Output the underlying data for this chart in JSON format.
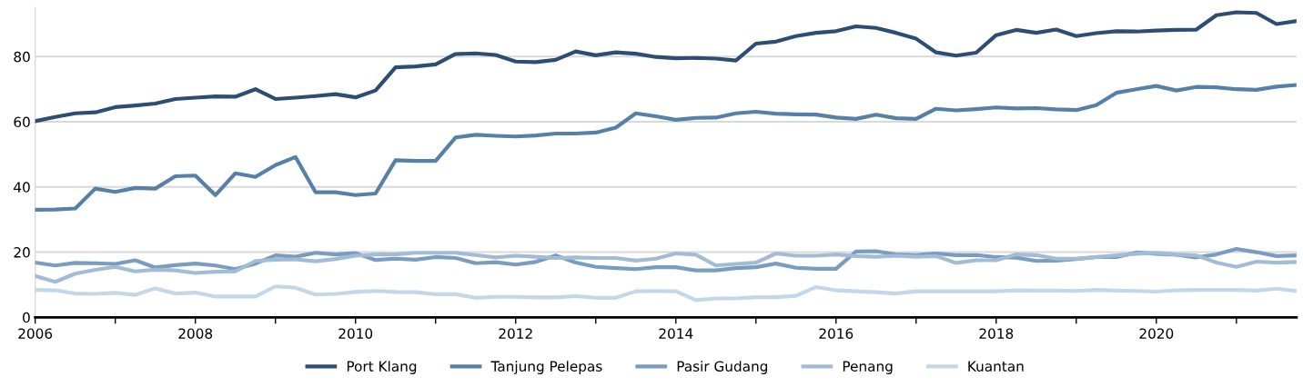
{
  "chart_data": {
    "type": "line",
    "x": [
      2006,
      2006.25,
      2006.5,
      2006.75,
      2007,
      2007.25,
      2007.5,
      2007.75,
      2008,
      2008.25,
      2008.5,
      2008.75,
      2009,
      2009.25,
      2009.5,
      2009.75,
      2010,
      2010.25,
      2010.5,
      2010.75,
      2011,
      2011.25,
      2011.5,
      2011.75,
      2012,
      2012.25,
      2012.5,
      2012.75,
      2013,
      2013.25,
      2013.5,
      2013.75,
      2014,
      2014.25,
      2014.5,
      2014.75,
      2015,
      2015.25,
      2015.5,
      2015.75,
      2016,
      2016.25,
      2016.5,
      2016.75,
      2017,
      2017.25,
      2017.5,
      2017.75,
      2018,
      2018.25,
      2018.5,
      2018.75,
      2019,
      2019.25,
      2019.5,
      2019.75,
      2020,
      2020.25,
      2020.5,
      2020.75,
      2021,
      2021.25,
      2021.5,
      2021.75
    ],
    "series": [
      {
        "name": "Port Klang",
        "color": "#2e4d74",
        "values": [
          60.2,
          61.5,
          62.6,
          62.9,
          64.5,
          65,
          65.6,
          67,
          67.4,
          67.8,
          67.7,
          70,
          67,
          67.4,
          67.9,
          68.5,
          67.5,
          69.6,
          76.7,
          77,
          77.6,
          80.8,
          81,
          80.5,
          78.5,
          78.3,
          79,
          81.6,
          80.4,
          81.3,
          80.9,
          79.9,
          79.5,
          79.6,
          79.4,
          78.8,
          84,
          84.6,
          86.3,
          87.3,
          87.8,
          89.3,
          88.8,
          87.3,
          85.5,
          81.3,
          80.3,
          81.2,
          86.6,
          88.2,
          87.3,
          88.3,
          86.3,
          87.2,
          87.8,
          87.7,
          88,
          88.2,
          88.3,
          92.7,
          93.6,
          93.4,
          90,
          90.9
        ]
      },
      {
        "name": "Tanjung Pelepas",
        "color": "#5580a8",
        "values": [
          33,
          33.1,
          33.4,
          39.5,
          38.5,
          39.7,
          39.5,
          43.3,
          43.5,
          37.5,
          44.2,
          43.1,
          46.7,
          49.2,
          38.4,
          38.4,
          37.5,
          38,
          48.2,
          48,
          48,
          55.2,
          56,
          55.7,
          55.5,
          55.8,
          56.4,
          56.4,
          56.7,
          58.2,
          62.6,
          61.7,
          60.6,
          61.2,
          61.3,
          62.6,
          63.1,
          62.5,
          62.3,
          62.2,
          61.3,
          60.9,
          62.2,
          61.1,
          60.9,
          64,
          63.5,
          63.9,
          64.4,
          64.1,
          64.2,
          63.8,
          63.6,
          65.1,
          68.9,
          70,
          71,
          69.6,
          70.7,
          70.6,
          70,
          69.8,
          70.8,
          71.3
        ]
      },
      {
        "name": "Pasir Gudang",
        "color": "#7a9cc0",
        "values": [
          16.8,
          15.9,
          16.7,
          16.6,
          16.4,
          17.5,
          15.3,
          16,
          16.5,
          15.9,
          14.8,
          16.5,
          19,
          18.6,
          19.8,
          19.3,
          19.7,
          17.6,
          18,
          17.7,
          18.5,
          18.2,
          16.6,
          16.9,
          16.2,
          17,
          19,
          16.8,
          15.5,
          15.1,
          14.8,
          15.4,
          15.4,
          14.4,
          14.4,
          15.1,
          15.4,
          16.5,
          15.2,
          14.9,
          14.9,
          20.2,
          20.3,
          19.3,
          19.1,
          19.6,
          19.1,
          19.1,
          18.5,
          18.3,
          17.3,
          17.4,
          17.9,
          18.5,
          18.5,
          19.9,
          19.5,
          19.2,
          18.4,
          19.3,
          21,
          20,
          18.8,
          19
        ]
      },
      {
        "name": "Penang",
        "color": "#a3bcd6",
        "values": [
          12.7,
          10.9,
          13.4,
          14.6,
          15.5,
          14.1,
          14.6,
          14.4,
          13.6,
          14,
          14.1,
          17.3,
          17.7,
          17.8,
          17.2,
          17.9,
          18.9,
          19.3,
          19.3,
          19.8,
          19.8,
          19.8,
          19.1,
          18.4,
          18.9,
          18.6,
          18.2,
          18.4,
          18.2,
          18.2,
          17.4,
          18,
          19.6,
          19.2,
          15.9,
          16.4,
          16.8,
          19.6,
          18.9,
          18.9,
          19.3,
          18.8,
          18.6,
          18.9,
          18.6,
          18.8,
          16.7,
          17.5,
          17.5,
          19.3,
          19.1,
          18,
          18,
          18.5,
          19,
          19.5,
          19.8,
          19.3,
          19,
          16.8,
          15.5,
          17.1,
          16.8,
          17
        ]
      },
      {
        "name": "Kuantan",
        "color": "#c3d7ea",
        "values": [
          8.4,
          8.3,
          7.3,
          7.2,
          7.5,
          6.9,
          8.9,
          7.3,
          7.6,
          6.4,
          6.4,
          6.4,
          9.5,
          9.1,
          7,
          7.2,
          7.8,
          8.1,
          7.8,
          7.7,
          7.1,
          7.1,
          6,
          6.3,
          6.3,
          6.1,
          6.1,
          6.5,
          6,
          6,
          8,
          8.1,
          8,
          5.3,
          5.8,
          5.8,
          6.2,
          6.2,
          6.6,
          9.3,
          8.3,
          8,
          7.7,
          7.3,
          8,
          8,
          8,
          8,
          8,
          8.3,
          8.2,
          8.2,
          8.1,
          8.4,
          8.2,
          8.1,
          7.9,
          8.3,
          8.4,
          8.4,
          8.4,
          8.2,
          8.8,
          8.1
        ]
      }
    ],
    "xlim": [
      2006,
      2021.75
    ],
    "xticks": [
      2006,
      {
        "value": 2007,
        "label": null
      },
      2008,
      {
        "value": 2009,
        "label": null
      },
      2010,
      {
        "value": 2011,
        "label": null
      },
      2012,
      {
        "value": 2013,
        "label": null
      },
      2014,
      {
        "value": 2015,
        "label": null
      },
      2016,
      {
        "value": 2017,
        "label": null
      },
      2018,
      {
        "value": 2019,
        "label": null
      },
      2020,
      {
        "value": 2021,
        "label": null
      }
    ],
    "ylim": [
      0,
      95
    ],
    "yticks": [
      0,
      20,
      40,
      60,
      80
    ],
    "grid": "y",
    "legend": "bottom",
    "line_style": "solid",
    "marker": "none"
  }
}
